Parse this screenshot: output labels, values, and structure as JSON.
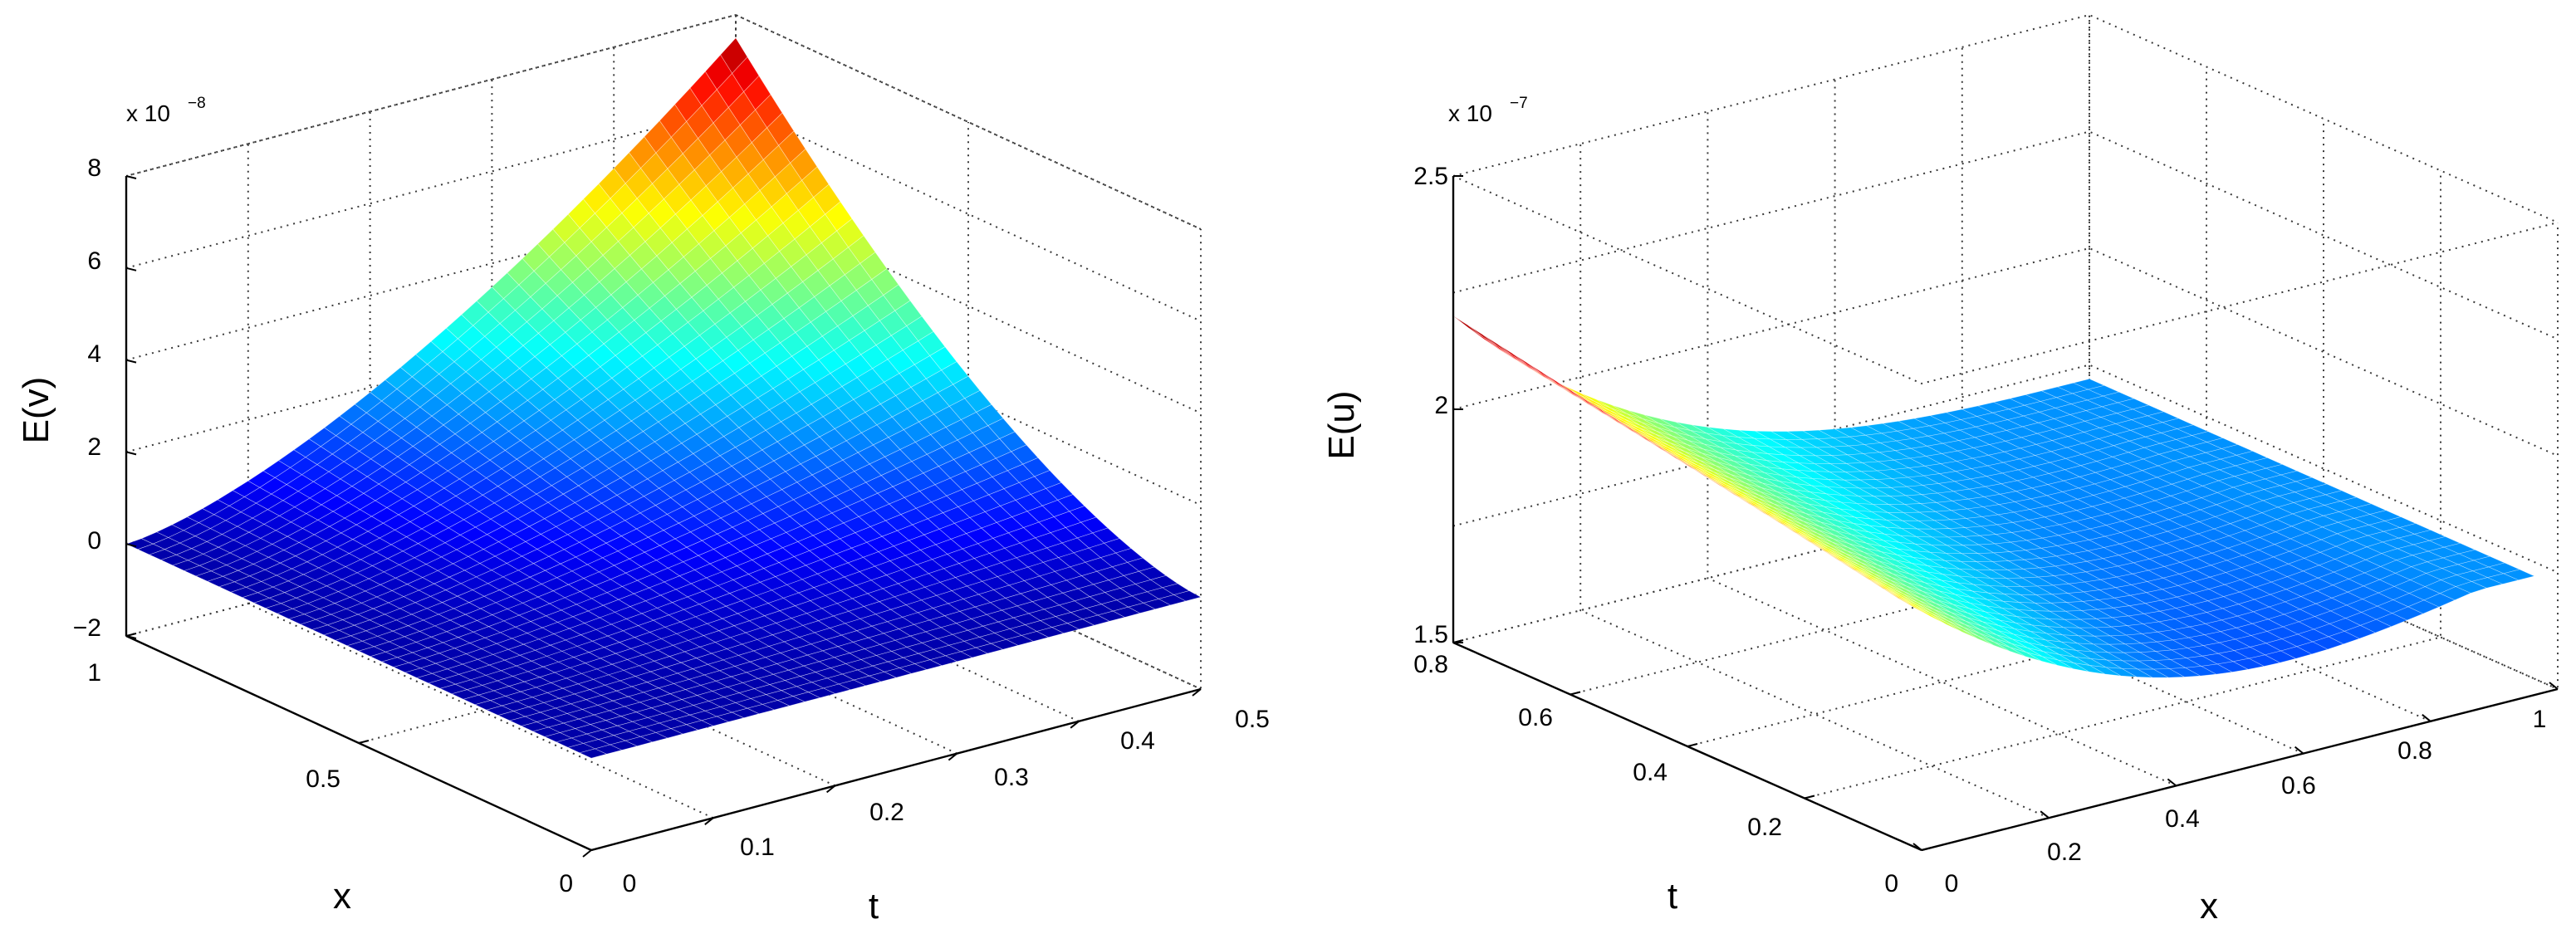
{
  "chart_data": [
    {
      "type": "surface",
      "zlabel": "E(v)",
      "xlabel": "x",
      "ylabel": "t",
      "exponent_label": {
        "base": "x 10",
        "power": "−8"
      },
      "zlim": [
        -2,
        8
      ],
      "xlim": [
        0,
        1
      ],
      "tlim": [
        0,
        0.5
      ],
      "ztick_labels": [
        "−2",
        "0",
        "2",
        "4",
        "6",
        "8"
      ],
      "xtick_labels": [
        "0",
        "0.5",
        "1"
      ],
      "ttick_labels": [
        "0",
        "0.1",
        "0.2",
        "0.3",
        "0.4",
        "0.5"
      ],
      "grid": true,
      "colormap": "jet",
      "surface_description_values": {
        "value_at_x0_t0": 0,
        "value_at_x1_t0": 0,
        "value_at_x0_t05": 0,
        "peak_value": 7.5,
        "peak_location": {
          "x": 1,
          "t": 0.5
        }
      }
    },
    {
      "type": "surface",
      "zlabel": "E(u)",
      "xlabel": "x",
      "ylabel": "t",
      "exponent_label": {
        "base": "x 10",
        "power": "−7"
      },
      "zlim": [
        1.5,
        2.5
      ],
      "xlim": [
        0,
        1
      ],
      "tlim": [
        0,
        0.8
      ],
      "ztick_labels": [
        "1.5",
        "2",
        "2.5"
      ],
      "xtick_labels": [
        "0",
        "0.2",
        "0.4",
        "0.6",
        "0.8",
        "1"
      ],
      "ttick_labels": [
        "0",
        "0.2",
        "0.4",
        "0.6",
        "0.8"
      ],
      "grid": true,
      "colormap": "jet",
      "surface_description_values": {
        "max_value": 2.2,
        "min_value": 1.62
      }
    }
  ]
}
